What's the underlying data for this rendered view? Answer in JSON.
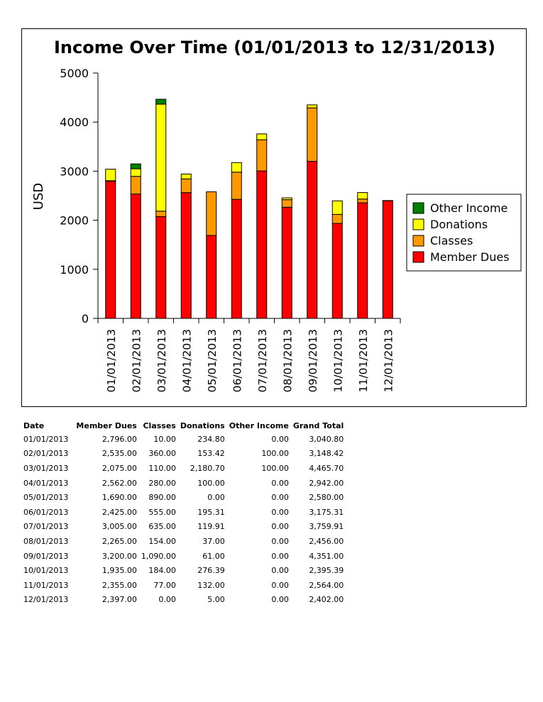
{
  "chart_data": {
    "type": "bar",
    "stacked": true,
    "title": "Income Over Time (01/01/2013 to 12/31/2013)",
    "xlabel": "",
    "ylabel": "USD",
    "ylim": [
      0,
      5000
    ],
    "yticks": [
      "0",
      "1000",
      "2000",
      "3000",
      "4000",
      "5000"
    ],
    "categories": [
      "01/01/2013",
      "02/01/2013",
      "03/01/2013",
      "04/01/2013",
      "05/01/2013",
      "06/01/2013",
      "07/01/2013",
      "08/01/2013",
      "09/01/2013",
      "10/01/2013",
      "11/01/2013",
      "12/01/2013"
    ],
    "series": [
      {
        "name": "Member Dues",
        "color": "#ff0000",
        "values": [
          2796,
          2535,
          2075,
          2562,
          1690,
          2425,
          3005,
          2265,
          3200,
          1935,
          2355,
          2397
        ]
      },
      {
        "name": "Classes",
        "color": "#ff9900",
        "values": [
          10,
          360,
          110,
          280,
          890,
          555,
          635,
          154,
          1090,
          184,
          77,
          0
        ]
      },
      {
        "name": "Donations",
        "color": "#ffff00",
        "values": [
          234.8,
          153.42,
          2180.7,
          100,
          0,
          195.31,
          119.91,
          37,
          61,
          276.39,
          132,
          5
        ]
      },
      {
        "name": "Other Income",
        "color": "#008000",
        "values": [
          0,
          100,
          100,
          0,
          0,
          0,
          0,
          0,
          0,
          0,
          0,
          0
        ]
      }
    ],
    "legend": {
      "position": "right",
      "order": [
        "Other Income",
        "Donations",
        "Classes",
        "Member Dues"
      ]
    },
    "grid": false
  },
  "table": {
    "headers": [
      "Date",
      "Member Dues",
      "Classes",
      "Donations",
      "Other Income",
      "Grand Total"
    ],
    "rows": [
      [
        "01/01/2013",
        "2,796.00",
        "10.00",
        "234.80",
        "0.00",
        "3,040.80"
      ],
      [
        "02/01/2013",
        "2,535.00",
        "360.00",
        "153.42",
        "100.00",
        "3,148.42"
      ],
      [
        "03/01/2013",
        "2,075.00",
        "110.00",
        "2,180.70",
        "100.00",
        "4,465.70"
      ],
      [
        "04/01/2013",
        "2,562.00",
        "280.00",
        "100.00",
        "0.00",
        "2,942.00"
      ],
      [
        "05/01/2013",
        "1,690.00",
        "890.00",
        "0.00",
        "0.00",
        "2,580.00"
      ],
      [
        "06/01/2013",
        "2,425.00",
        "555.00",
        "195.31",
        "0.00",
        "3,175.31"
      ],
      [
        "07/01/2013",
        "3,005.00",
        "635.00",
        "119.91",
        "0.00",
        "3,759.91"
      ],
      [
        "08/01/2013",
        "2,265.00",
        "154.00",
        "37.00",
        "0.00",
        "2,456.00"
      ],
      [
        "09/01/2013",
        "3,200.00",
        "1,090.00",
        "61.00",
        "0.00",
        "4,351.00"
      ],
      [
        "10/01/2013",
        "1,935.00",
        "184.00",
        "276.39",
        "0.00",
        "2,395.39"
      ],
      [
        "11/01/2013",
        "2,355.00",
        "77.00",
        "132.00",
        "0.00",
        "2,564.00"
      ],
      [
        "12/01/2013",
        "2,397.00",
        "0.00",
        "5.00",
        "0.00",
        "2,402.00"
      ]
    ]
  }
}
